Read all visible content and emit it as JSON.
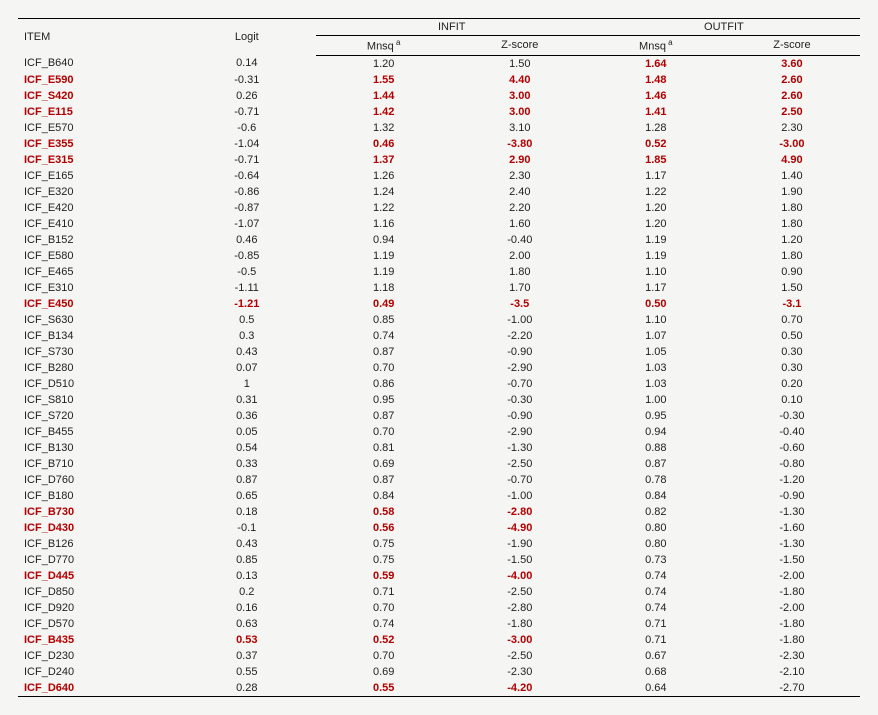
{
  "headers": {
    "item": "ITEM",
    "logit": "Logit",
    "infit": "INFIT",
    "outfit": "OUTFIT",
    "mnsq": "Mnsq",
    "zscore": "Z-score"
  },
  "colors": {
    "highlight": "#b00000",
    "text": "#222222",
    "rule": "#000000",
    "background": "#f5f5f3"
  },
  "rows": [
    {
      "item": "ICF_B640",
      "logit": "0.14",
      "infit_mnsq": "1.20",
      "infit_z": "1.50",
      "outfit_mnsq": "1.64",
      "outfit_z": "3.60",
      "hl": {
        "outfit_mnsq": true,
        "outfit_z": true
      }
    },
    {
      "item": "ICF_E590",
      "logit": "-0.31",
      "infit_mnsq": "1.55",
      "infit_z": "4.40",
      "outfit_mnsq": "1.48",
      "outfit_z": "2.60",
      "hl": {
        "item": true,
        "infit_mnsq": true,
        "infit_z": true,
        "outfit_mnsq": true,
        "outfit_z": true
      }
    },
    {
      "item": "ICF_S420",
      "logit": "0.26",
      "infit_mnsq": "1.44",
      "infit_z": "3.00",
      "outfit_mnsq": "1.46",
      "outfit_z": "2.60",
      "hl": {
        "item": true,
        "infit_mnsq": true,
        "infit_z": true,
        "outfit_mnsq": true,
        "outfit_z": true
      }
    },
    {
      "item": "ICF_E115",
      "logit": "-0.71",
      "infit_mnsq": "1.42",
      "infit_z": "3.00",
      "outfit_mnsq": "1.41",
      "outfit_z": "2.50",
      "hl": {
        "item": true,
        "infit_mnsq": true,
        "infit_z": true,
        "outfit_mnsq": true,
        "outfit_z": true
      }
    },
    {
      "item": "ICF_E570",
      "logit": "-0.6",
      "infit_mnsq": "1.32",
      "infit_z": "3.10",
      "outfit_mnsq": "1.28",
      "outfit_z": "2.30"
    },
    {
      "item": "ICF_E355",
      "logit": "-1.04",
      "infit_mnsq": "0.46",
      "infit_z": "-3.80",
      "outfit_mnsq": "0.52",
      "outfit_z": "-3.00",
      "hl": {
        "item": true,
        "infit_mnsq": true,
        "infit_z": true,
        "outfit_mnsq": true,
        "outfit_z": true
      }
    },
    {
      "item": "ICF_E315",
      "logit": "-0.71",
      "infit_mnsq": "1.37",
      "infit_z": "2.90",
      "outfit_mnsq": "1.85",
      "outfit_z": "4.90",
      "hl": {
        "item": true,
        "infit_mnsq": true,
        "infit_z": true,
        "outfit_mnsq": true,
        "outfit_z": true
      }
    },
    {
      "item": "ICF_E165",
      "logit": "-0.64",
      "infit_mnsq": "1.26",
      "infit_z": "2.30",
      "outfit_mnsq": "1.17",
      "outfit_z": "1.40"
    },
    {
      "item": "ICF_E320",
      "logit": "-0.86",
      "infit_mnsq": "1.24",
      "infit_z": "2.40",
      "outfit_mnsq": "1.22",
      "outfit_z": "1.90"
    },
    {
      "item": "ICF_E420",
      "logit": "-0.87",
      "infit_mnsq": "1.22",
      "infit_z": "2.20",
      "outfit_mnsq": "1.20",
      "outfit_z": "1.80"
    },
    {
      "item": "ICF_E410",
      "logit": "-1.07",
      "infit_mnsq": "1.16",
      "infit_z": "1.60",
      "outfit_mnsq": "1.20",
      "outfit_z": "1.80"
    },
    {
      "item": "ICF_B152",
      "logit": "0.46",
      "infit_mnsq": "0.94",
      "infit_z": "-0.40",
      "outfit_mnsq": "1.19",
      "outfit_z": "1.20"
    },
    {
      "item": "ICF_E580",
      "logit": "-0.85",
      "infit_mnsq": "1.19",
      "infit_z": "2.00",
      "outfit_mnsq": "1.19",
      "outfit_z": "1.80"
    },
    {
      "item": "ICF_E465",
      "logit": "-0.5",
      "infit_mnsq": "1.19",
      "infit_z": "1.80",
      "outfit_mnsq": "1.10",
      "outfit_z": "0.90"
    },
    {
      "item": "ICF_E310",
      "logit": "-1.11",
      "infit_mnsq": "1.18",
      "infit_z": "1.70",
      "outfit_mnsq": "1.17",
      "outfit_z": "1.50"
    },
    {
      "item": "ICF_E450",
      "logit": "-1.21",
      "infit_mnsq": "0.49",
      "infit_z": "-3.5",
      "outfit_mnsq": "0.50",
      "outfit_z": "-3.1",
      "hl": {
        "item": true,
        "logit": true,
        "infit_mnsq": true,
        "infit_z": true,
        "outfit_mnsq": true,
        "outfit_z": true
      }
    },
    {
      "item": "ICF_S630",
      "logit": "0.5",
      "infit_mnsq": "0.85",
      "infit_z": "-1.00",
      "outfit_mnsq": "1.10",
      "outfit_z": "0.70"
    },
    {
      "item": "ICF_B134",
      "logit": "0.3",
      "infit_mnsq": "0.74",
      "infit_z": "-2.20",
      "outfit_mnsq": "1.07",
      "outfit_z": "0.50"
    },
    {
      "item": "ICF_S730",
      "logit": "0.43",
      "infit_mnsq": "0.87",
      "infit_z": "-0.90",
      "outfit_mnsq": "1.05",
      "outfit_z": "0.30"
    },
    {
      "item": "ICF_B280",
      "logit": "0.07",
      "infit_mnsq": "0.70",
      "infit_z": "-2.90",
      "outfit_mnsq": "1.03",
      "outfit_z": "0.30"
    },
    {
      "item": "ICF_D510",
      "logit": "1",
      "infit_mnsq": "0.86",
      "infit_z": "-0.70",
      "outfit_mnsq": "1.03",
      "outfit_z": "0.20"
    },
    {
      "item": "ICF_S810",
      "logit": "0.31",
      "infit_mnsq": "0.95",
      "infit_z": "-0.30",
      "outfit_mnsq": "1.00",
      "outfit_z": "0.10"
    },
    {
      "item": "ICF_S720",
      "logit": "0.36",
      "infit_mnsq": "0.87",
      "infit_z": "-0.90",
      "outfit_mnsq": "0.95",
      "outfit_z": "-0.30"
    },
    {
      "item": "ICF_B455",
      "logit": "0.05",
      "infit_mnsq": "0.70",
      "infit_z": "-2.90",
      "outfit_mnsq": "0.94",
      "outfit_z": "-0.40"
    },
    {
      "item": "ICF_B130",
      "logit": "0.54",
      "infit_mnsq": "0.81",
      "infit_z": "-1.30",
      "outfit_mnsq": "0.88",
      "outfit_z": "-0.60"
    },
    {
      "item": "ICF_B710",
      "logit": "0.33",
      "infit_mnsq": "0.69",
      "infit_z": "-2.50",
      "outfit_mnsq": "0.87",
      "outfit_z": "-0.80"
    },
    {
      "item": "ICF_D760",
      "logit": "0.87",
      "infit_mnsq": "0.87",
      "infit_z": "-0.70",
      "outfit_mnsq": "0.78",
      "outfit_z": "-1.20"
    },
    {
      "item": "ICF_B180",
      "logit": "0.65",
      "infit_mnsq": "0.84",
      "infit_z": "-1.00",
      "outfit_mnsq": "0.84",
      "outfit_z": "-0.90"
    },
    {
      "item": "ICF_B730",
      "logit": "0.18",
      "infit_mnsq": "0.58",
      "infit_z": "-2.80",
      "outfit_mnsq": "0.82",
      "outfit_z": "-1.30",
      "hl": {
        "item": true,
        "infit_mnsq": true,
        "infit_z": true
      }
    },
    {
      "item": "ICF_D430",
      "logit": "-0.1",
      "infit_mnsq": "0.56",
      "infit_z": "-4.90",
      "outfit_mnsq": "0.80",
      "outfit_z": "-1.60",
      "hl": {
        "item": true,
        "infit_mnsq": true,
        "infit_z": true
      }
    },
    {
      "item": "ICF_B126",
      "logit": "0.43",
      "infit_mnsq": "0.75",
      "infit_z": "-1.90",
      "outfit_mnsq": "0.80",
      "outfit_z": "-1.30"
    },
    {
      "item": "ICF_D770",
      "logit": "0.85",
      "infit_mnsq": "0.75",
      "infit_z": "-1.50",
      "outfit_mnsq": "0.73",
      "outfit_z": "-1.50"
    },
    {
      "item": "ICF_D445",
      "logit": "0.13",
      "infit_mnsq": "0.59",
      "infit_z": "-4.00",
      "outfit_mnsq": "0.74",
      "outfit_z": "-2.00",
      "hl": {
        "item": true,
        "infit_mnsq": true,
        "infit_z": true
      }
    },
    {
      "item": "ICF_D850",
      "logit": "0.2",
      "infit_mnsq": "0.71",
      "infit_z": "-2.50",
      "outfit_mnsq": "0.74",
      "outfit_z": "-1.80"
    },
    {
      "item": "ICF_D920",
      "logit": "0.16",
      "infit_mnsq": "0.70",
      "infit_z": "-2.80",
      "outfit_mnsq": "0.74",
      "outfit_z": "-2.00"
    },
    {
      "item": "ICF_D570",
      "logit": "0.63",
      "infit_mnsq": "0.74",
      "infit_z": "-1.80",
      "outfit_mnsq": "0.71",
      "outfit_z": "-1.80"
    },
    {
      "item": "ICF_B435",
      "logit": "0.53",
      "infit_mnsq": "0.52",
      "infit_z": "-3.00",
      "outfit_mnsq": "0.71",
      "outfit_z": "-1.80",
      "hl": {
        "item": true,
        "logit": true,
        "infit_mnsq": true,
        "infit_z": true
      }
    },
    {
      "item": "ICF_D230",
      "logit": "0.37",
      "infit_mnsq": "0.70",
      "infit_z": "-2.50",
      "outfit_mnsq": "0.67",
      "outfit_z": "-2.30"
    },
    {
      "item": "ICF_D240",
      "logit": "0.55",
      "infit_mnsq": "0.69",
      "infit_z": "-2.30",
      "outfit_mnsq": "0.68",
      "outfit_z": "-2.10"
    },
    {
      "item": "ICF_D640",
      "logit": "0.28",
      "infit_mnsq": "0.55",
      "infit_z": "-4.20",
      "outfit_mnsq": "0.64",
      "outfit_z": "-2.70",
      "hl": {
        "item": true,
        "infit_mnsq": true,
        "infit_z": true
      }
    }
  ]
}
